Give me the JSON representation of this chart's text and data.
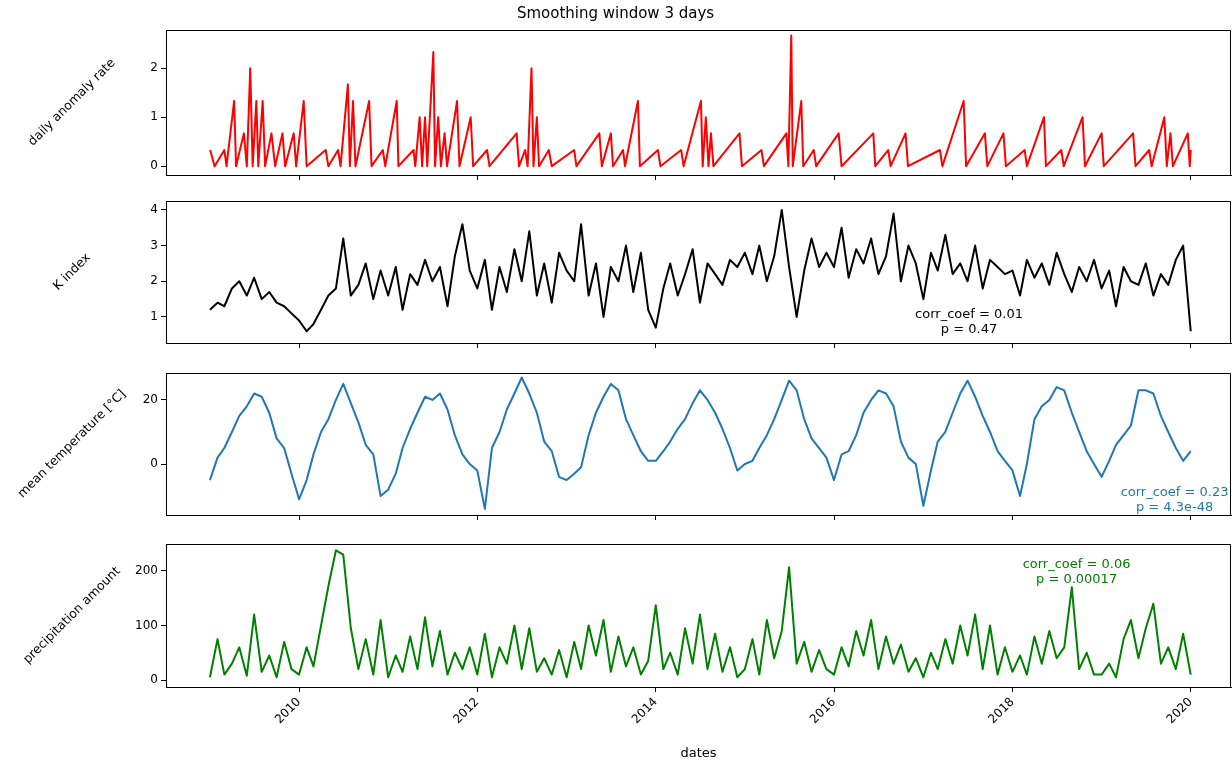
{
  "chart_data": [
    {
      "type": "line",
      "title": "Smoothing window 3 days",
      "ylabel": "daily anomaly rate",
      "color": "#ff0000",
      "tick_labels": "y",
      "xlim": [
        "2008-07-05",
        "2020-06-14"
      ],
      "xticks": [
        "2010",
        "2012",
        "2014",
        "2016",
        "2018",
        "2020"
      ],
      "ylim": [
        -0.18,
        2.78
      ],
      "yticks": [
        0,
        1,
        2
      ],
      "x": [
        "2009-01-02",
        "2009-01-20",
        "2009-03-01",
        "2009-03-10",
        "2009-04-10",
        "2009-04-18",
        "2009-05-20",
        "2009-06-01",
        "2009-06-15",
        "2009-06-25",
        "2009-07-10",
        "2009-07-18",
        "2009-08-05",
        "2009-08-15",
        "2009-09-10",
        "2009-09-25",
        "2009-10-25",
        "2009-11-05",
        "2009-12-10",
        "2009-12-20",
        "2010-01-20",
        "2010-02-01",
        "2010-04-20",
        "2010-05-01",
        "2010-06-10",
        "2010-06-20",
        "2010-07-20",
        "2010-07-28",
        "2010-08-10",
        "2010-08-20",
        "2010-10-15",
        "2010-10-25",
        "2010-12-10",
        "2010-12-20",
        "2011-02-05",
        "2011-02-12",
        "2011-04-15",
        "2011-04-22",
        "2011-05-10",
        "2011-05-20",
        "2011-06-01",
        "2011-06-10",
        "2011-07-05",
        "2011-07-12",
        "2011-07-25",
        "2011-08-05",
        "2011-08-20",
        "2011-08-30",
        "2011-10-10",
        "2011-10-20",
        "2011-12-05",
        "2011-12-15",
        "2012-02-10",
        "2012-02-20",
        "2012-06-10",
        "2012-06-20",
        "2012-07-15",
        "2012-07-25",
        "2012-08-10",
        "2012-08-18",
        "2012-09-01",
        "2012-09-10",
        "2012-10-20",
        "2012-11-01",
        "2013-02-01",
        "2013-02-10",
        "2013-05-15",
        "2013-05-25",
        "2013-07-01",
        "2013-07-10",
        "2013-08-20",
        "2013-08-28",
        "2013-10-20",
        "2013-10-28",
        "2014-01-10",
        "2014-01-20",
        "2014-04-15",
        "2014-04-25",
        "2014-07-05",
        "2014-07-12",
        "2014-07-25",
        "2014-08-05",
        "2014-08-15",
        "2014-08-25",
        "2014-12-10",
        "2014-12-20",
        "2015-03-10",
        "2015-03-20",
        "2015-06-20",
        "2015-06-28",
        "2015-07-10",
        "2015-07-16",
        "2015-08-20",
        "2015-08-28",
        "2015-10-10",
        "2015-10-20",
        "2016-01-20",
        "2016-02-01",
        "2016-06-10",
        "2016-06-18",
        "2016-08-10",
        "2016-08-20",
        "2016-10-20",
        "2016-10-30",
        "2017-03-10",
        "2017-03-20",
        "2017-06-15",
        "2017-06-25",
        "2017-09-10",
        "2017-09-20",
        "2017-11-25",
        "2017-12-05",
        "2018-02-20",
        "2018-03-01",
        "2018-05-10",
        "2018-05-18",
        "2018-07-20",
        "2018-07-30",
        "2018-10-15",
        "2018-10-25",
        "2019-01-01",
        "2019-01-10",
        "2019-05-10",
        "2019-05-20",
        "2019-07-15",
        "2019-07-25",
        "2019-09-15",
        "2019-09-25",
        "2019-10-10",
        "2019-10-20",
        "2019-12-20",
        "2019-12-28",
        "2020-01-01"
      ],
      "values": [
        0.33,
        0,
        0.33,
        0,
        1.33,
        0,
        0.67,
        0,
        2,
        0,
        1.33,
        0,
        1.33,
        0,
        0.67,
        0,
        0.67,
        0,
        0.67,
        0,
        1.33,
        0,
        0.33,
        0,
        0.33,
        0,
        1.67,
        0,
        1.33,
        0,
        1.33,
        0,
        0.33,
        0,
        1.33,
        0,
        0.33,
        0,
        1,
        0,
        1,
        0,
        2.33,
        0,
        1,
        0,
        0.67,
        0,
        1.33,
        0,
        1,
        0,
        0.33,
        0,
        0.67,
        0,
        0.33,
        0,
        2,
        0,
        1,
        0,
        0.33,
        0,
        0.33,
        0,
        0.67,
        0,
        0.67,
        0,
        0.33,
        0,
        1.33,
        0,
        0.33,
        0,
        0.33,
        0,
        1.33,
        0,
        1,
        0,
        0.67,
        0,
        0.67,
        0,
        0.33,
        0,
        0.67,
        0,
        2.67,
        0,
        1.33,
        0,
        0.33,
        0,
        0.67,
        0,
        0.67,
        0,
        0.33,
        0,
        0.67,
        0,
        0.33,
        0,
        1.33,
        0,
        0.67,
        0,
        0.67,
        0,
        0.33,
        0,
        1,
        0,
        0.33,
        0,
        1,
        0,
        0.67,
        0,
        0.67,
        0,
        0.33,
        0,
        1,
        0,
        0.67,
        0,
        0.67,
        0,
        0.33
      ]
    },
    {
      "type": "line",
      "ylabel": "K index",
      "color": "#000000",
      "tick_labels": "y",
      "annotations": [
        "corr_coef = 0.01",
        "p = 0.47"
      ],
      "xlim": [
        "2008-07-05",
        "2020-06-14"
      ],
      "xticks": [
        "2010",
        "2012",
        "2014",
        "2016",
        "2018",
        "2020"
      ],
      "ylim": [
        0.27,
        4.25
      ],
      "yticks": [
        1,
        2,
        3,
        4
      ],
      "x": [
        "2009-01",
        "2009-02",
        "2009-03",
        "2009-04",
        "2009-05",
        "2009-06",
        "2009-07",
        "2009-08",
        "2009-09",
        "2009-10",
        "2009-11",
        "2009-12",
        "2010-01",
        "2010-02",
        "2010-03",
        "2010-04",
        "2010-05",
        "2010-06",
        "2010-07",
        "2010-08",
        "2010-09",
        "2010-10",
        "2010-11",
        "2010-12",
        "2011-01",
        "2011-02",
        "2011-03",
        "2011-04",
        "2011-05",
        "2011-06",
        "2011-07",
        "2011-08",
        "2011-09",
        "2011-10",
        "2011-11",
        "2011-12",
        "2012-01",
        "2012-02",
        "2012-03",
        "2012-04",
        "2012-05",
        "2012-06",
        "2012-07",
        "2012-08",
        "2012-09",
        "2012-10",
        "2012-11",
        "2012-12",
        "2013-01",
        "2013-02",
        "2013-03",
        "2013-04",
        "2013-05",
        "2013-06",
        "2013-07",
        "2013-08",
        "2013-09",
        "2013-10",
        "2013-11",
        "2013-12",
        "2014-01",
        "2014-02",
        "2014-03",
        "2014-04",
        "2014-05",
        "2014-06",
        "2014-07",
        "2014-08",
        "2014-09",
        "2014-10",
        "2014-11",
        "2014-12",
        "2015-01",
        "2015-02",
        "2015-03",
        "2015-04",
        "2015-05",
        "2015-06",
        "2015-07",
        "2015-08",
        "2015-09",
        "2015-10",
        "2015-11",
        "2015-12",
        "2016-01",
        "2016-02",
        "2016-03",
        "2016-04",
        "2016-05",
        "2016-06",
        "2016-07",
        "2016-08",
        "2016-09",
        "2016-10",
        "2016-11",
        "2016-12",
        "2017-01",
        "2017-02",
        "2017-03",
        "2017-04",
        "2017-05",
        "2017-06",
        "2017-07",
        "2017-08",
        "2017-09",
        "2017-10",
        "2017-11",
        "2017-12",
        "2018-01",
        "2018-02",
        "2018-03",
        "2018-04",
        "2018-05",
        "2018-06",
        "2018-07",
        "2018-08",
        "2018-09",
        "2018-10",
        "2018-11",
        "2018-12",
        "2019-01",
        "2019-02",
        "2019-03",
        "2019-04",
        "2019-05",
        "2019-06",
        "2019-07",
        "2019-08",
        "2019-09",
        "2019-10",
        "2019-11",
        "2019-12",
        "2020-01"
      ],
      "values": [
        1.2,
        1.4,
        1.3,
        1.8,
        2.0,
        1.6,
        2.1,
        1.5,
        1.7,
        1.4,
        1.3,
        1.1,
        0.9,
        0.6,
        0.8,
        1.2,
        1.6,
        1.8,
        3.2,
        1.6,
        1.9,
        2.5,
        1.5,
        2.3,
        1.6,
        2.4,
        1.2,
        2.2,
        1.9,
        2.6,
        2.0,
        2.4,
        1.3,
        2.7,
        3.6,
        2.3,
        1.8,
        2.6,
        1.2,
        2.4,
        1.7,
        2.9,
        2.0,
        3.4,
        1.6,
        2.5,
        1.4,
        2.8,
        2.3,
        2.0,
        3.6,
        1.6,
        2.5,
        1.0,
        2.4,
        2.0,
        3.0,
        1.7,
        2.8,
        1.2,
        0.7,
        1.8,
        2.5,
        1.6,
        2.2,
        2.9,
        1.4,
        2.5,
        2.2,
        1.9,
        2.6,
        2.4,
        2.8,
        2.2,
        3.0,
        2.0,
        2.7,
        4.0,
        2.4,
        1.0,
        2.3,
        3.2,
        2.4,
        2.8,
        2.4,
        3.5,
        2.1,
        2.9,
        2.5,
        3.2,
        2.2,
        2.7,
        3.9,
        2.0,
        3.0,
        2.5,
        1.5,
        2.8,
        2.3,
        3.3,
        2.2,
        2.5,
        2.0,
        3.0,
        1.8,
        2.6,
        2.4,
        2.2,
        2.3,
        1.6,
        2.6,
        2.1,
        2.5,
        1.9,
        2.8,
        2.2,
        1.7,
        2.4,
        2.0,
        2.6,
        1.8,
        2.3,
        1.3,
        2.4,
        2.0,
        1.9,
        2.5,
        1.6,
        2.2,
        1.9,
        2.6,
        3.0,
        0.6
      ]
    },
    {
      "type": "line",
      "ylabel": "mean temperature [°C]",
      "color": "#1f77b4",
      "tick_labels": "y",
      "annotations": [
        "corr_coef = 0.23",
        "p = 4.3e-48"
      ],
      "xlim": [
        "2008-07-05",
        "2020-06-14"
      ],
      "xticks": [
        "2010",
        "2012",
        "2014",
        "2016",
        "2018",
        "2020"
      ],
      "ylim": [
        -15.9,
        28.4
      ],
      "yticks": [
        0,
        20
      ],
      "x": [
        "2009-01",
        "2009-02",
        "2009-03",
        "2009-04",
        "2009-05",
        "2009-06",
        "2009-07",
        "2009-08",
        "2009-09",
        "2009-10",
        "2009-11",
        "2009-12",
        "2010-01",
        "2010-02",
        "2010-03",
        "2010-04",
        "2010-05",
        "2010-06",
        "2010-07",
        "2010-08",
        "2010-09",
        "2010-10",
        "2010-11",
        "2010-12",
        "2011-01",
        "2011-02",
        "2011-03",
        "2011-04",
        "2011-05",
        "2011-06",
        "2011-07",
        "2011-08",
        "2011-09",
        "2011-10",
        "2011-11",
        "2011-12",
        "2012-01",
        "2012-02",
        "2012-03",
        "2012-04",
        "2012-05",
        "2012-06",
        "2012-07",
        "2012-08",
        "2012-09",
        "2012-10",
        "2012-11",
        "2012-12",
        "2013-01",
        "2013-02",
        "2013-03",
        "2013-04",
        "2013-05",
        "2013-06",
        "2013-07",
        "2013-08",
        "2013-09",
        "2013-10",
        "2013-11",
        "2013-12",
        "2014-01",
        "2014-02",
        "2014-03",
        "2014-04",
        "2014-05",
        "2014-06",
        "2014-07",
        "2014-08",
        "2014-09",
        "2014-10",
        "2014-11",
        "2014-12",
        "2015-01",
        "2015-02",
        "2015-03",
        "2015-04",
        "2015-05",
        "2015-06",
        "2015-07",
        "2015-08",
        "2015-09",
        "2015-10",
        "2015-11",
        "2015-12",
        "2016-01",
        "2016-02",
        "2016-03",
        "2016-04",
        "2016-05",
        "2016-06",
        "2016-07",
        "2016-08",
        "2016-09",
        "2016-10",
        "2016-11",
        "2016-12",
        "2017-01",
        "2017-02",
        "2017-03",
        "2017-04",
        "2017-05",
        "2017-06",
        "2017-07",
        "2017-08",
        "2017-09",
        "2017-10",
        "2017-11",
        "2017-12",
        "2018-01",
        "2018-02",
        "2018-03",
        "2018-04",
        "2018-05",
        "2018-06",
        "2018-07",
        "2018-08",
        "2018-09",
        "2018-10",
        "2018-11",
        "2018-12",
        "2019-01",
        "2019-02",
        "2019-03",
        "2019-04",
        "2019-05",
        "2019-06",
        "2019-07",
        "2019-08",
        "2019-09",
        "2019-10",
        "2019-11",
        "2019-12",
        "2020-01"
      ],
      "values": [
        -5,
        2,
        5,
        10,
        15,
        18,
        22,
        21,
        16,
        8,
        5,
        -3,
        -11,
        -5,
        3,
        10,
        14,
        20,
        25,
        19,
        13,
        6,
        3,
        -10,
        -8,
        -3,
        5,
        11,
        16,
        21,
        20,
        22,
        17,
        9,
        3,
        0,
        -2,
        -14,
        5,
        10,
        17,
        22,
        27,
        22,
        16,
        7,
        4,
        -4,
        -5,
        -3,
        -1,
        9,
        16,
        21,
        25,
        23,
        14,
        9,
        4,
        1,
        1,
        4,
        7,
        11,
        14,
        19,
        23,
        20,
        16,
        11,
        5,
        -2,
        0,
        1,
        5,
        9,
        14,
        20,
        26,
        23,
        14,
        8,
        5,
        2,
        -5,
        3,
        4,
        9,
        16,
        20,
        23,
        22,
        18,
        7,
        2,
        0,
        -13,
        -2,
        7,
        10,
        16,
        22,
        26,
        21,
        15,
        10,
        4,
        1,
        -2,
        -10,
        0,
        14,
        18,
        20,
        24,
        23,
        16,
        10,
        4,
        0,
        -4,
        1,
        6,
        9,
        12,
        23,
        23,
        22,
        15,
        10,
        5,
        1,
        4
      ]
    },
    {
      "type": "line",
      "ylabel": "precipitation amount",
      "xlabel": "dates",
      "color": "#008000",
      "annotations": [
        "corr_coef = 0.06",
        "p = 0.00017"
      ],
      "xlim": [
        "2008-07-05",
        "2020-06-14"
      ],
      "xticks": [
        "2010",
        "2012",
        "2014",
        "2016",
        "2018",
        "2020"
      ],
      "ylim": [
        -12.8,
        249.5
      ],
      "yticks": [
        0,
        100,
        200
      ],
      "x": [
        "2009-01",
        "2009-02",
        "2009-03",
        "2009-04",
        "2009-05",
        "2009-06",
        "2009-07",
        "2009-08",
        "2009-09",
        "2009-10",
        "2009-11",
        "2009-12",
        "2010-01",
        "2010-02",
        "2010-03",
        "2010-04",
        "2010-05",
        "2010-06",
        "2010-07",
        "2010-08",
        "2010-09",
        "2010-10",
        "2010-11",
        "2010-12",
        "2011-01",
        "2011-02",
        "2011-03",
        "2011-04",
        "2011-05",
        "2011-06",
        "2011-07",
        "2011-08",
        "2011-09",
        "2011-10",
        "2011-11",
        "2011-12",
        "2012-01",
        "2012-02",
        "2012-03",
        "2012-04",
        "2012-05",
        "2012-06",
        "2012-07",
        "2012-08",
        "2012-09",
        "2012-10",
        "2012-11",
        "2012-12",
        "2013-01",
        "2013-02",
        "2013-03",
        "2013-04",
        "2013-05",
        "2013-06",
        "2013-07",
        "2013-08",
        "2013-09",
        "2013-10",
        "2013-11",
        "2013-12",
        "2014-01",
        "2014-02",
        "2014-03",
        "2014-04",
        "2014-05",
        "2014-06",
        "2014-07",
        "2014-08",
        "2014-09",
        "2014-10",
        "2014-11",
        "2014-12",
        "2015-01",
        "2015-02",
        "2015-03",
        "2015-04",
        "2015-05",
        "2015-06",
        "2015-07",
        "2015-08",
        "2015-09",
        "2015-10",
        "2015-11",
        "2015-12",
        "2016-01",
        "2016-02",
        "2016-03",
        "2016-04",
        "2016-05",
        "2016-06",
        "2016-07",
        "2016-08",
        "2016-09",
        "2016-10",
        "2016-11",
        "2016-12",
        "2017-01",
        "2017-02",
        "2017-03",
        "2017-04",
        "2017-05",
        "2017-06",
        "2017-07",
        "2017-08",
        "2017-09",
        "2017-10",
        "2017-11",
        "2017-12",
        "2018-01",
        "2018-02",
        "2018-03",
        "2018-04",
        "2018-05",
        "2018-06",
        "2018-07",
        "2018-08",
        "2018-09",
        "2018-10",
        "2018-11",
        "2018-12",
        "2019-01",
        "2019-02",
        "2019-03",
        "2019-04",
        "2019-05",
        "2019-06",
        "2019-07",
        "2019-08",
        "2019-09",
        "2019-10",
        "2019-11",
        "2019-12",
        "2020-01"
      ],
      "values": [
        5,
        75,
        10,
        30,
        60,
        8,
        120,
        15,
        45,
        5,
        70,
        20,
        10,
        60,
        25,
        100,
        172,
        238,
        230,
        95,
        20,
        75,
        10,
        110,
        5,
        45,
        15,
        80,
        20,
        115,
        25,
        90,
        10,
        50,
        20,
        60,
        10,
        85,
        5,
        60,
        30,
        100,
        20,
        95,
        15,
        40,
        10,
        55,
        5,
        70,
        20,
        100,
        45,
        110,
        15,
        80,
        25,
        60,
        10,
        35,
        137,
        20,
        50,
        10,
        95,
        30,
        120,
        20,
        85,
        15,
        60,
        5,
        20,
        75,
        10,
        110,
        40,
        90,
        207,
        30,
        70,
        15,
        55,
        20,
        10,
        60,
        25,
        90,
        45,
        110,
        20,
        80,
        30,
        65,
        15,
        40,
        5,
        50,
        20,
        75,
        30,
        100,
        45,
        120,
        20,
        100,
        10,
        60,
        15,
        45,
        10,
        80,
        30,
        90,
        40,
        60,
        170,
        20,
        50,
        10,
        10,
        30,
        5,
        75,
        110,
        40,
        95,
        140,
        30,
        60,
        20,
        85,
        10
      ]
    }
  ]
}
